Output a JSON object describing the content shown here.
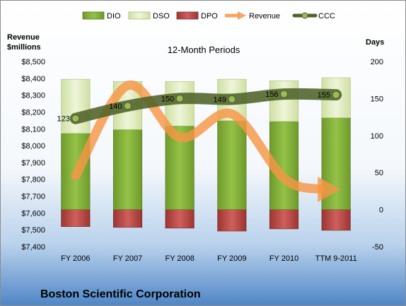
{
  "chart_data": {
    "type": "bar",
    "subtitle": "12-Month Periods",
    "company": "Boston Scientific Corporation",
    "categories": [
      "FY 2006",
      "FY 2007",
      "FY 2008",
      "FY 2009",
      "FY 2010",
      "TTM 9-2011"
    ],
    "left_axis": {
      "title_line1": "Revenue",
      "title_line2": "$millions",
      "ylim": [
        7400,
        8500
      ],
      "ticks": [
        "$7,400",
        "$7,500",
        "$7,600",
        "$7,700",
        "$7,800",
        "$7,900",
        "$8,000",
        "$8,100",
        "$8,200",
        "$8,300",
        "$8,400",
        "$8,500"
      ]
    },
    "right_axis": {
      "title": "Days",
      "ylim": [
        -50,
        200
      ],
      "ticks": [
        "-50",
        "0",
        "50",
        "100",
        "150",
        "200"
      ]
    },
    "legend": [
      "DIO",
      "DSO",
      "DPO",
      "Revenue",
      "CCC"
    ],
    "series": [
      {
        "name": "DIO",
        "axis": "right",
        "color": "#8bb93e",
        "values": [
          103,
          108,
          113,
          120,
          119,
          124
        ]
      },
      {
        "name": "DSO",
        "axis": "right",
        "color": "#d8e8b0",
        "values": [
          73,
          65,
          60,
          56,
          55,
          54
        ]
      },
      {
        "name": "DPO",
        "axis": "right",
        "color": "#c0504d",
        "values": [
          -23,
          -24,
          -25,
          -29,
          -26,
          -28
        ]
      },
      {
        "name": "Revenue",
        "axis": "left",
        "color": "#f79646",
        "values": [
          7821,
          8357,
          8050,
          8188,
          7806,
          7740
        ]
      },
      {
        "name": "CCC",
        "axis": "right",
        "color": "#4f6228",
        "values": [
          123,
          140,
          150,
          149,
          156,
          155
        ]
      }
    ],
    "grid": false,
    "legend_position": "top"
  }
}
